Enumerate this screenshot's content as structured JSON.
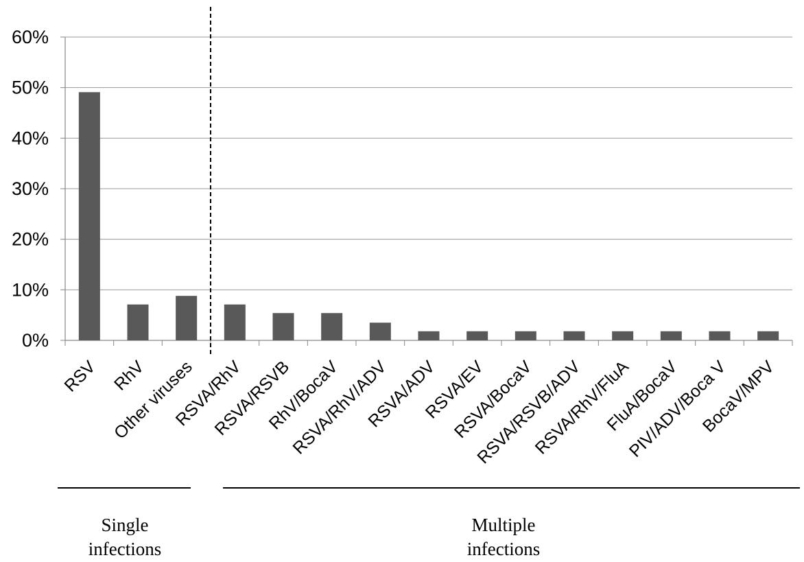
{
  "chart_data": {
    "type": "bar",
    "title": "",
    "xlabel": "",
    "ylabel": "",
    "ylim": [
      0,
      60
    ],
    "yticks": [
      "0%",
      "10%",
      "20%",
      "30%",
      "40%",
      "50%",
      "60%"
    ],
    "ytick_values": [
      0,
      10,
      20,
      30,
      40,
      50,
      60
    ],
    "grid": true,
    "categories": [
      "RSV",
      "RhV",
      "Other viruses",
      "RSVA/RhV",
      "RSVA/RSVB",
      "RhV/BocaV",
      "RSVA/RhV/ADV",
      "RSVA/ADV",
      "RSVA/EV",
      "RSVA/BocaV",
      "RSVA/RSVB/ADV",
      "RSVA/RhV/FluA",
      "FluA/BocaV",
      "PIV/ADV/Boca V",
      "BocaV/MPV"
    ],
    "values": [
      49.1,
      7.1,
      8.8,
      7.1,
      5.4,
      5.4,
      3.5,
      1.8,
      1.8,
      1.8,
      1.8,
      1.8,
      1.8,
      1.8,
      1.8
    ],
    "bar_color": "#595959",
    "groups": [
      {
        "label_lines": [
          "Single",
          "infections"
        ],
        "start": 0,
        "end": 2
      },
      {
        "label_lines": [
          "Multiple",
          "infections"
        ],
        "start": 3,
        "end": 14
      }
    ]
  }
}
